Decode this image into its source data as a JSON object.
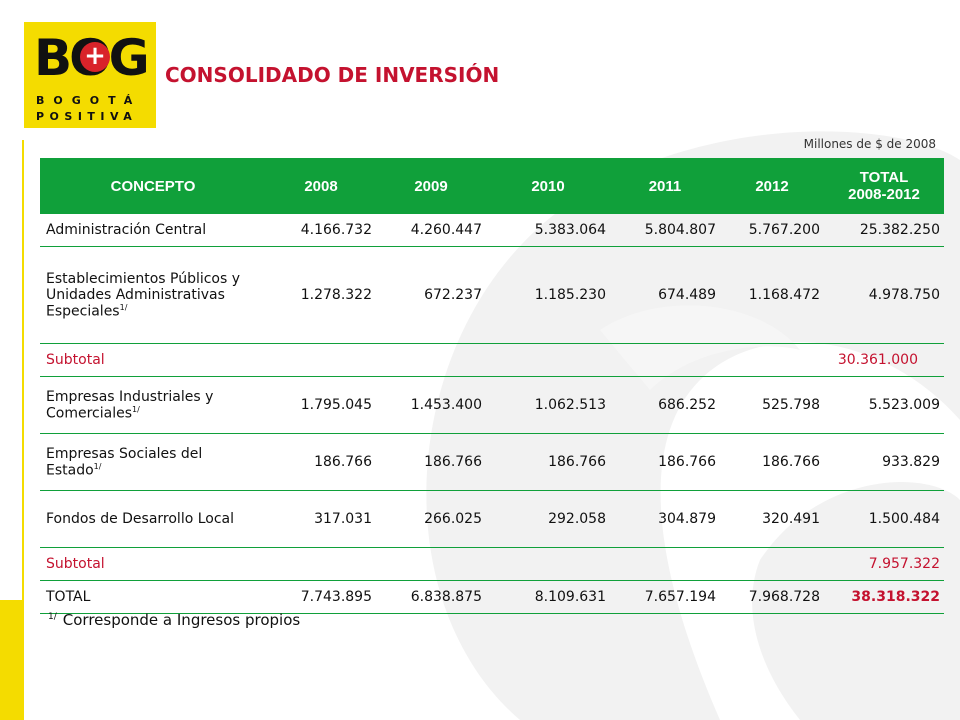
{
  "logo": {
    "word": "BOG",
    "plus": "+",
    "line1": "BOGOTÁ",
    "line2": "POSITIVA"
  },
  "title": "CONSOLIDADO DE INVERSIÓN",
  "units": "Millones de $ de 2008",
  "table": {
    "headers": [
      "CONCEPTO",
      "2008",
      "2009",
      "2010",
      "2011",
      "2012",
      "TOTAL\n2008-2012"
    ],
    "header_total_line1": "TOTAL",
    "header_total_line2": "2008-2012",
    "footnote_mark": "1/",
    "rows": {
      "admin": {
        "concept": "Administración Central",
        "values": [
          "4.166.732",
          "4.260.447",
          "5.383.064",
          "5.804.807",
          "5.767.200",
          "25.382.250"
        ]
      },
      "est": {
        "concept": "Establecimientos Públicos y Unidades Administrativas Especiales",
        "values": [
          "1.278.322",
          "672.237",
          "1.185.230",
          "674.489",
          "1.168.472",
          "4.978.750"
        ]
      },
      "subtotal1": {
        "label": "Subtotal",
        "value": "30.361.000"
      },
      "emp": {
        "concept": "Empresas Industriales y Comerciales",
        "values": [
          "1.795.045",
          "1.453.400",
          "1.062.513",
          "686.252",
          "525.798",
          "5.523.009"
        ]
      },
      "soc": {
        "concept": "Empresas Sociales del Estado",
        "values": [
          "186.766",
          "186.766",
          "186.766",
          "186.766",
          "186.766",
          "933.829"
        ]
      },
      "fon": {
        "concept": "Fondos de Desarrollo Local",
        "values": [
          "317.031",
          "266.025",
          "292.058",
          "304.879",
          "320.491",
          "1.500.484"
        ]
      },
      "subtotal2": {
        "label": "Subtotal",
        "value": "7.957.322"
      },
      "total": {
        "label": "TOTAL",
        "values": [
          "7.743.895",
          "6.838.875",
          "8.109.631",
          "7.657.194",
          "7.968.728",
          "38.318.322"
        ]
      }
    }
  },
  "note": {
    "mark": "1/",
    "text": "Corresponde a Ingresos propios"
  },
  "colors": {
    "green": "#10a03a",
    "red": "#c4122f",
    "yellow": "#f4dc00"
  }
}
